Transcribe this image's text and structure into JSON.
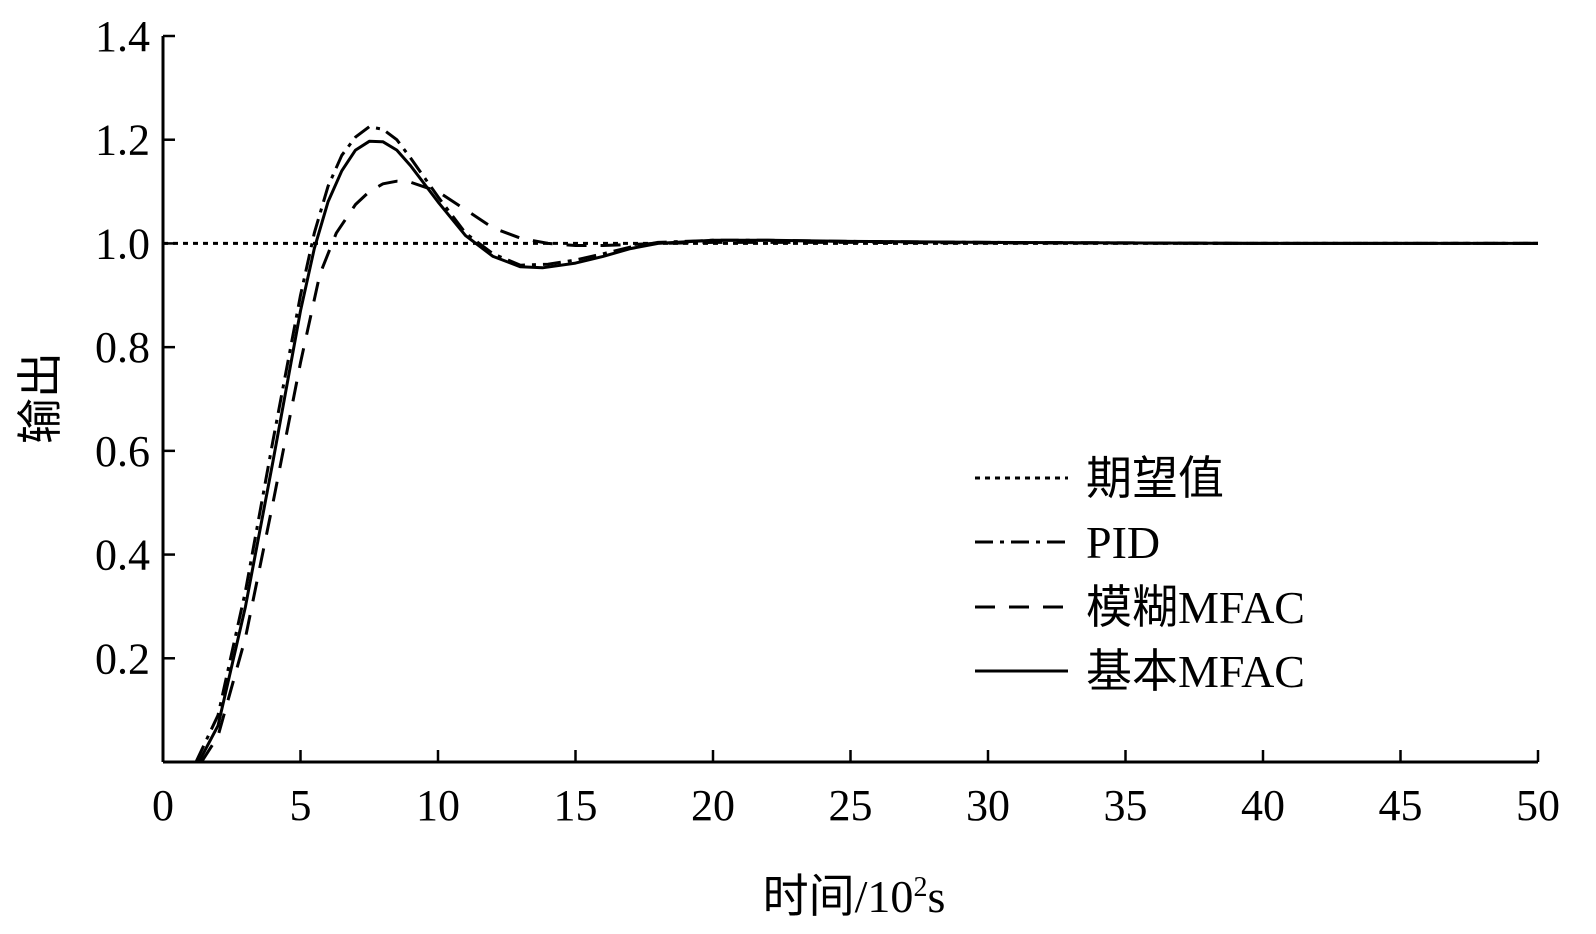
{
  "chart_data": {
    "type": "line",
    "title": "",
    "xlabel": "时间/10",
    "xlabel_sup": "2",
    "xlabel_unit": "s",
    "ylabel": "输出",
    "xlim": [
      0,
      50
    ],
    "ylim": [
      0,
      1.4
    ],
    "xticks": [
      0,
      5,
      10,
      15,
      20,
      25,
      30,
      35,
      40,
      45,
      50
    ],
    "xtick_labels": [
      "0",
      "5",
      "10",
      "15",
      "20",
      "25",
      "30",
      "35",
      "40",
      "45",
      "50"
    ],
    "yticks": [
      0.2,
      0.4,
      0.6,
      0.8,
      1.0,
      1.2,
      1.4
    ],
    "ytick_labels": [
      "0.2",
      "0.4",
      "0.6",
      "0.8",
      "1.0",
      "1.2",
      "1.4"
    ],
    "grid": false,
    "legend_position": "center-right",
    "series": [
      {
        "name": "期望值",
        "style": "dotted",
        "color": "#000000",
        "points": [
          [
            0,
            1.0
          ],
          [
            50,
            1.0
          ]
        ]
      },
      {
        "name": "PID",
        "style": "dashdot",
        "color": "#000000",
        "points": [
          [
            1.2,
            0.0
          ],
          [
            2,
            0.09
          ],
          [
            3,
            0.33
          ],
          [
            4,
            0.62
          ],
          [
            5,
            0.9
          ],
          [
            5.5,
            1.02
          ],
          [
            6,
            1.11
          ],
          [
            6.5,
            1.17
          ],
          [
            7,
            1.205
          ],
          [
            7.5,
            1.225
          ],
          [
            8,
            1.22
          ],
          [
            8.5,
            1.2
          ],
          [
            9,
            1.165
          ],
          [
            10,
            1.09
          ],
          [
            11,
            1.02
          ],
          [
            12,
            0.98
          ],
          [
            13,
            0.958
          ],
          [
            14,
            0.96
          ],
          [
            15,
            0.968
          ],
          [
            16,
            0.98
          ],
          [
            17,
            0.993
          ],
          [
            18,
            1.002
          ],
          [
            20,
            1.006
          ],
          [
            22,
            1.006
          ],
          [
            25,
            1.004
          ],
          [
            30,
            1.002
          ],
          [
            35,
            1.001
          ],
          [
            40,
            1.0
          ],
          [
            50,
            1.0
          ]
        ]
      },
      {
        "name": "模糊MFAC",
        "style": "dashed",
        "color": "#000000",
        "points": [
          [
            1.4,
            0.0
          ],
          [
            2,
            0.05
          ],
          [
            3,
            0.24
          ],
          [
            4,
            0.5
          ],
          [
            5,
            0.77
          ],
          [
            5.7,
            0.94
          ],
          [
            6.3,
            1.02
          ],
          [
            7,
            1.075
          ],
          [
            7.5,
            1.1
          ],
          [
            8,
            1.115
          ],
          [
            8.5,
            1.12
          ],
          [
            9,
            1.118
          ],
          [
            10,
            1.1
          ],
          [
            11,
            1.065
          ],
          [
            12,
            1.03
          ],
          [
            13,
            1.01
          ],
          [
            14,
            1.0
          ],
          [
            15,
            0.996
          ],
          [
            16,
            0.996
          ],
          [
            17,
            0.998
          ],
          [
            18,
            1.0
          ],
          [
            20,
            1.002
          ],
          [
            25,
            1.002
          ],
          [
            30,
            1.001
          ],
          [
            40,
            1.0
          ],
          [
            50,
            1.0
          ]
        ]
      },
      {
        "name": "基本MFAC",
        "style": "solid",
        "color": "#000000",
        "points": [
          [
            1.3,
            0.0
          ],
          [
            2,
            0.07
          ],
          [
            3,
            0.3
          ],
          [
            4,
            0.58
          ],
          [
            5,
            0.87
          ],
          [
            5.5,
            0.99
          ],
          [
            6,
            1.08
          ],
          [
            6.5,
            1.14
          ],
          [
            7,
            1.18
          ],
          [
            7.5,
            1.197
          ],
          [
            8,
            1.196
          ],
          [
            8.5,
            1.18
          ],
          [
            9,
            1.15
          ],
          [
            10,
            1.08
          ],
          [
            11,
            1.015
          ],
          [
            12,
            0.975
          ],
          [
            13,
            0.955
          ],
          [
            13.8,
            0.953
          ],
          [
            15,
            0.962
          ],
          [
            16,
            0.975
          ],
          [
            17,
            0.99
          ],
          [
            18,
            1.0
          ],
          [
            20,
            1.006
          ],
          [
            22,
            1.006
          ],
          [
            25,
            1.004
          ],
          [
            30,
            1.002
          ],
          [
            35,
            1.001
          ],
          [
            40,
            1.0
          ],
          [
            50,
            1.0
          ]
        ]
      }
    ]
  }
}
